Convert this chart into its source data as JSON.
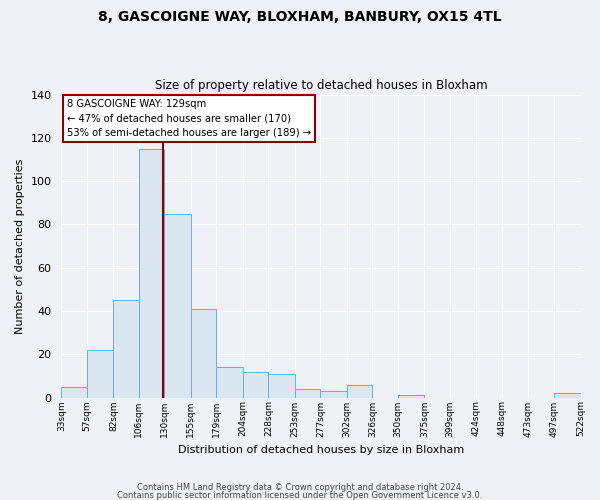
{
  "title": "8, GASCOIGNE WAY, BLOXHAM, BANBURY, OX15 4TL",
  "subtitle": "Size of property relative to detached houses in Bloxham",
  "xlabel": "Distribution of detached houses by size in Bloxham",
  "ylabel": "Number of detached properties",
  "bin_edges": [
    33,
    57,
    82,
    106,
    130,
    155,
    179,
    204,
    228,
    253,
    277,
    302,
    326,
    350,
    375,
    399,
    424,
    448,
    473,
    497,
    522
  ],
  "bin_labels": [
    "33sqm",
    "57sqm",
    "82sqm",
    "106sqm",
    "130sqm",
    "155sqm",
    "179sqm",
    "204sqm",
    "228sqm",
    "253sqm",
    "277sqm",
    "302sqm",
    "326sqm",
    "350sqm",
    "375sqm",
    "399sqm",
    "424sqm",
    "448sqm",
    "473sqm",
    "497sqm",
    "522sqm"
  ],
  "counts": [
    5,
    22,
    45,
    115,
    85,
    41,
    14,
    12,
    11,
    4,
    3,
    6,
    0,
    1,
    0,
    0,
    0,
    0,
    0,
    2
  ],
  "bar_color": "#dae6f0",
  "bar_edge_color": "#6aaed6",
  "vline_x": 129,
  "vline_color": "#8b0000",
  "annotation_text": "8 GASCOIGNE WAY: 129sqm\n← 47% of detached houses are smaller (170)\n53% of semi-detached houses are larger (189) →",
  "annotation_box_color": "#ffffff",
  "annotation_box_edge": "#8b0000",
  "ylim": [
    0,
    140
  ],
  "yticks": [
    0,
    20,
    40,
    60,
    80,
    100,
    120,
    140
  ],
  "footer1": "Contains HM Land Registry data © Crown copyright and database right 2024.",
  "footer2": "Contains public sector information licensed under the Open Government Licence v3.0.",
  "bg_color": "#eef2f7",
  "plot_bg_color": "#eef2f7",
  "grid_color": "#ffffff"
}
